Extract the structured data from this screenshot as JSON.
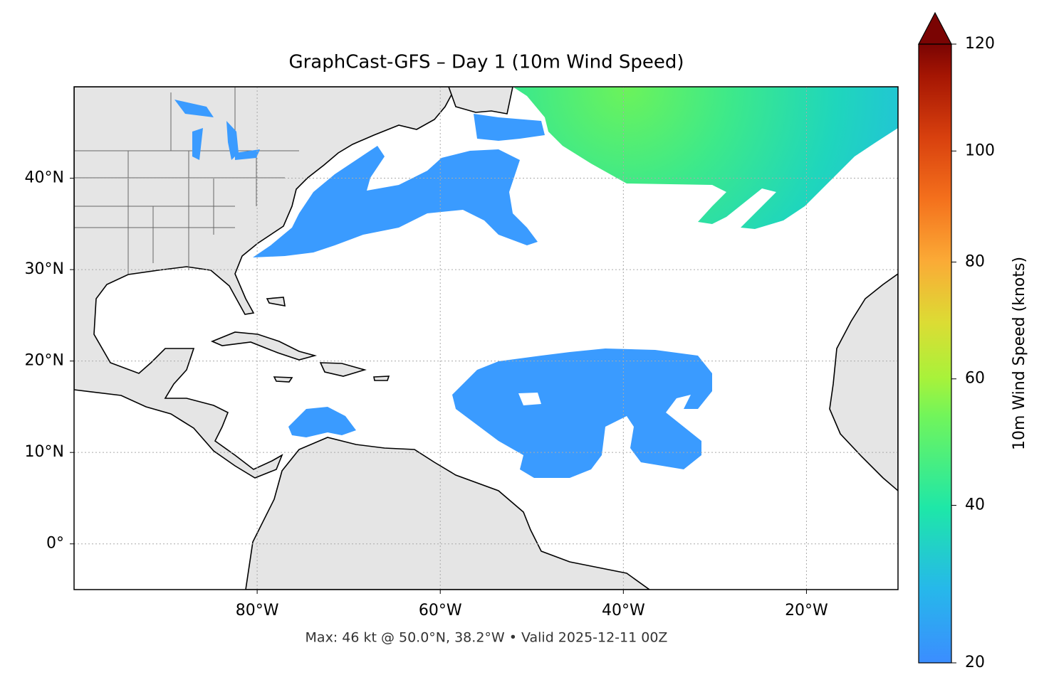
{
  "chart_data": {
    "type": "map",
    "title": "GraphCast-GFS – Day 1 (10m Wind Speed)",
    "footnote": "Max: 46 kt @ 50.0°N, 38.2°W • Valid 2025-12-11 00Z",
    "xlim": [
      -100,
      -10
    ],
    "ylim": [
      -5,
      50
    ],
    "xticks": [
      {
        "value": -80,
        "label": "80°W"
      },
      {
        "value": -60,
        "label": "60°W"
      },
      {
        "value": -40,
        "label": "40°W"
      },
      {
        "value": -20,
        "label": "20°W"
      }
    ],
    "yticks": [
      {
        "value": 0,
        "label": "0°"
      },
      {
        "value": 10,
        "label": "10°N"
      },
      {
        "value": 20,
        "label": "20°N"
      },
      {
        "value": 30,
        "label": "30°N"
      },
      {
        "value": 40,
        "label": "40°N"
      }
    ],
    "grid": true,
    "colorbar": {
      "label": "10m Wind Speed (knots)",
      "lim": [
        20,
        120
      ],
      "ticks": [
        20,
        40,
        60,
        80,
        100,
        120
      ],
      "gamma": 0.85
    }
  }
}
